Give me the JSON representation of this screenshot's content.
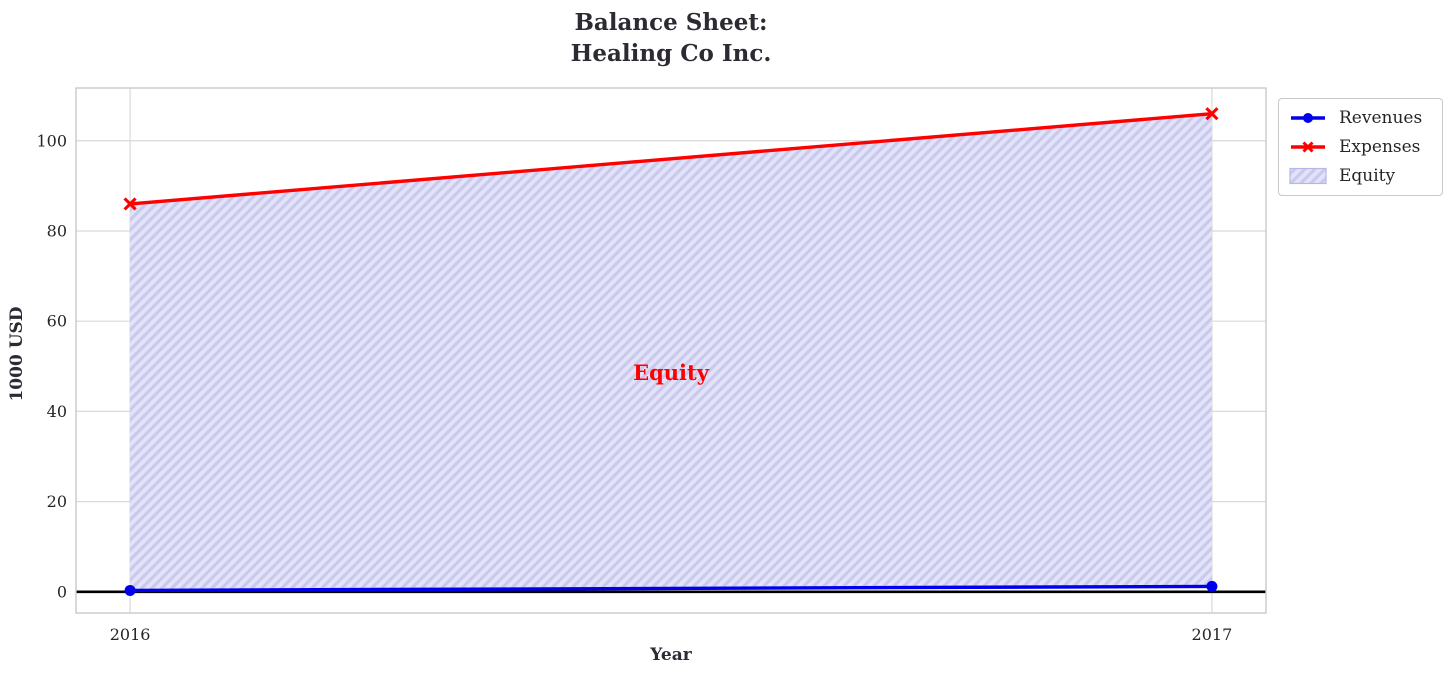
{
  "title": {
    "line1": "Balance Sheet:",
    "line2": "Healing Co Inc."
  },
  "axes": {
    "xlabel": "Year",
    "ylabel": "1000 USD"
  },
  "legend": {
    "position": "outside-top-right",
    "items": [
      {
        "label": "Revenues",
        "marker": "circle",
        "color": "#0000ee"
      },
      {
        "label": "Expenses",
        "marker": "x",
        "color": "#ff0000"
      },
      {
        "label": "Equity",
        "marker": "patch",
        "fill_color": "#e3e3f8",
        "hatch_color": "#c9c9ef",
        "border_color": "#b6b6e8"
      }
    ]
  },
  "annotation": {
    "text": "Equity",
    "color": "#ff0000"
  },
  "chart_data": {
    "type": "line",
    "title": "Balance Sheet:\nHealing Co Inc.",
    "xlabel": "Year",
    "ylabel": "1000 USD",
    "x": [
      2016,
      2017
    ],
    "xticks": [
      2016,
      2017
    ],
    "yticks": [
      0,
      20,
      40,
      60,
      80,
      100
    ],
    "xlim": [
      2015.95,
      2017.05
    ],
    "ylim": [
      -4.7,
      111.7
    ],
    "grid": true,
    "grid_color": "#d9d9d9",
    "spine_color": "#c9c9c9",
    "tick_color": "#262626",
    "zero_line": true,
    "zero_line_color": "#000000",
    "series": [
      {
        "name": "Revenues",
        "values": [
          0.3,
          1.2
        ],
        "color": "#0000ee",
        "marker": "circle"
      },
      {
        "name": "Expenses",
        "values": [
          86,
          106
        ],
        "color": "#ff0000",
        "marker": "x"
      }
    ],
    "fill_between": {
      "name": "Equity",
      "lower_series": "Revenues",
      "upper_series": "Expenses",
      "fill_color": "#e3e3f8",
      "hatch": "//",
      "hatch_color": "#c9c9ef"
    },
    "annotation": {
      "text": "Equity",
      "x": 2016.5,
      "y": 48.5,
      "color": "#ff0000"
    },
    "legend_position": "outside-top-right"
  }
}
